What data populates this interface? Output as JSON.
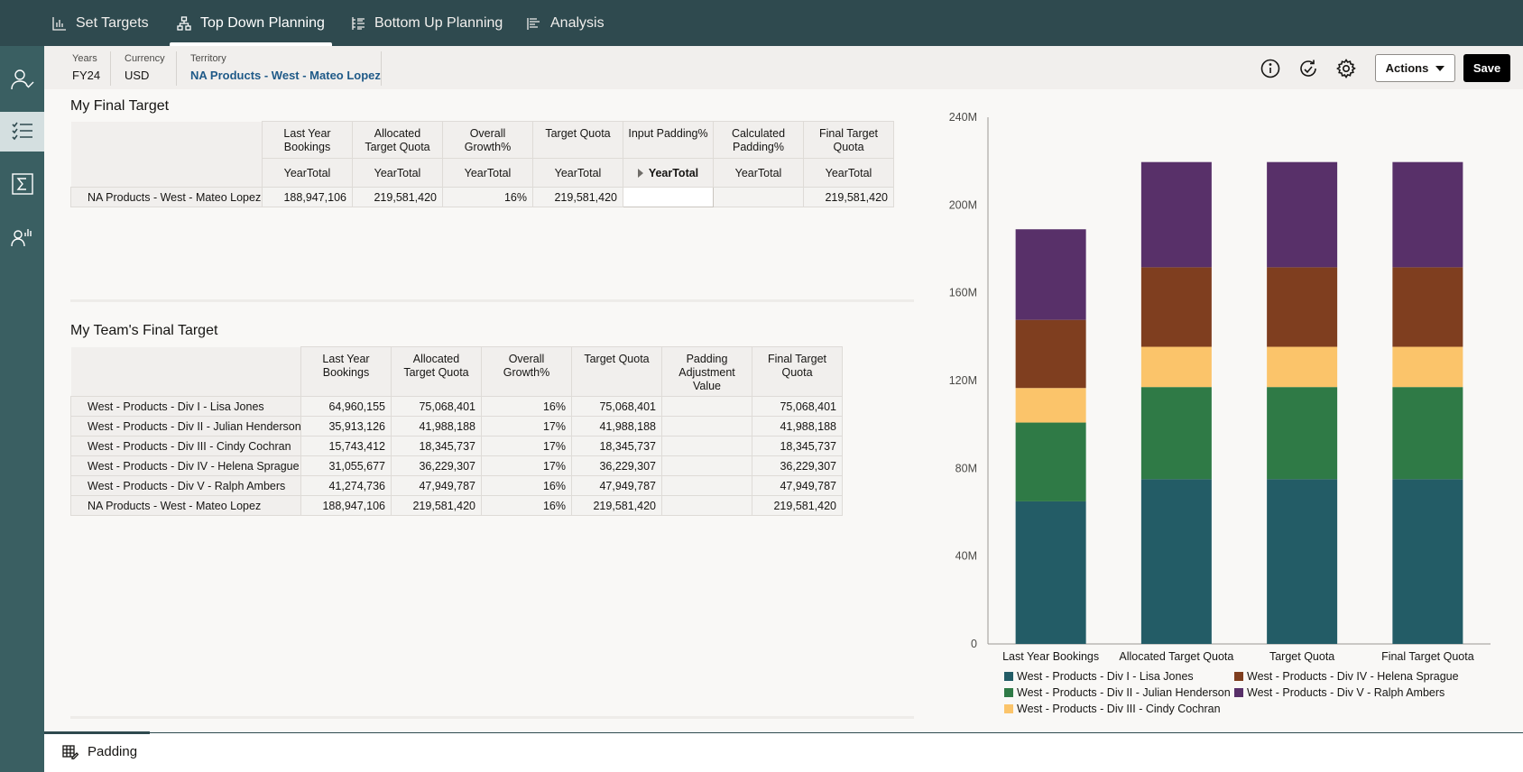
{
  "nav": {
    "tabs": [
      {
        "label": "Set Targets",
        "icon": "bar-chart-icon"
      },
      {
        "label": "Top Down Planning",
        "icon": "hierarchy-icon"
      },
      {
        "label": "Bottom Up Planning",
        "icon": "list-hierarchy-icon"
      },
      {
        "label": "Analysis",
        "icon": "analysis-icon"
      }
    ],
    "active": "Top Down Planning"
  },
  "pov": {
    "years": {
      "label": "Years",
      "value": "FY24"
    },
    "currency": {
      "label": "Currency",
      "value": "USD"
    },
    "territory": {
      "label": "Territory",
      "value": "NA Products - West - Mateo Lopez"
    }
  },
  "toolbar": {
    "actions_label": "Actions",
    "save_label": "Save"
  },
  "final_target": {
    "title": "My Final Target",
    "columns": [
      "Last Year Bookings",
      "Allocated Target Quota",
      "Overall Growth%",
      "Target Quota",
      "Input Padding%",
      "Calculated Padding%",
      "Final Target Quota"
    ],
    "subheaders": [
      "YearTotal",
      "YearTotal",
      "YearTotal",
      "YearTotal",
      "YearTotal",
      "YearTotal",
      "YearTotal"
    ],
    "row": {
      "label": "NA Products - West - Mateo Lopez",
      "values": [
        "188,947,106",
        "219,581,420",
        "16%",
        "219,581,420",
        "",
        "",
        "219,581,420"
      ]
    }
  },
  "team_target": {
    "title": "My Team's Final Target",
    "columns": [
      "Last Year Bookings",
      "Allocated Target Quota",
      "Overall Growth%",
      "Target Quota",
      "Padding Adjustment Value",
      "Final Target Quota"
    ],
    "rows": [
      {
        "label": "West - Products - Div I - Lisa Jones",
        "values": [
          "64,960,155",
          "75,068,401",
          "16%",
          "75,068,401",
          "",
          "75,068,401"
        ]
      },
      {
        "label": "West - Products - Div II - Julian Henderson",
        "values": [
          "35,913,126",
          "41,988,188",
          "17%",
          "41,988,188",
          "",
          "41,988,188"
        ]
      },
      {
        "label": "West - Products - Div III - Cindy Cochran",
        "values": [
          "15,743,412",
          "18,345,737",
          "17%",
          "18,345,737",
          "",
          "18,345,737"
        ]
      },
      {
        "label": "West - Products - Div IV - Helena Sprague",
        "values": [
          "31,055,677",
          "36,229,307",
          "17%",
          "36,229,307",
          "",
          "36,229,307"
        ]
      },
      {
        "label": "West - Products - Div V - Ralph Ambers",
        "values": [
          "41,274,736",
          "47,949,787",
          "16%",
          "47,949,787",
          "",
          "47,949,787"
        ]
      },
      {
        "label": "NA Products - West - Mateo Lopez",
        "values": [
          "188,947,106",
          "219,581,420",
          "16%",
          "219,581,420",
          "",
          "219,581,420"
        ]
      }
    ]
  },
  "bottom": {
    "tab_label": "Padding"
  },
  "chart_data": {
    "type": "bar",
    "stacked": true,
    "categories": [
      "Last Year Bookings",
      "Allocated Target Quota",
      "Target Quota",
      "Final Target Quota"
    ],
    "series": [
      {
        "name": "West - Products - Div I - Lisa Jones",
        "color": "#235c66",
        "values": [
          64960155,
          75068401,
          75068401,
          75068401
        ]
      },
      {
        "name": "West - Products - Div II - Julian Henderson",
        "color": "#2f7a46",
        "values": [
          35913126,
          41988188,
          41988188,
          41988188
        ]
      },
      {
        "name": "West - Products - Div III - Cindy Cochran",
        "color": "#fbc46a",
        "values": [
          15743412,
          18345737,
          18345737,
          18345737
        ]
      },
      {
        "name": "West - Products - Div IV - Helena Sprague",
        "color": "#7f3e1f",
        "values": [
          31055677,
          36229307,
          36229307,
          36229307
        ]
      },
      {
        "name": "West - Products - Div V - Ralph Ambers",
        "color": "#583069",
        "values": [
          41274736,
          47949787,
          47949787,
          47949787
        ]
      }
    ],
    "yticks": [
      "0",
      "40M",
      "80M",
      "120M",
      "160M",
      "200M",
      "240M"
    ],
    "ylim": [
      0,
      240000000
    ],
    "legend": "bottom"
  }
}
